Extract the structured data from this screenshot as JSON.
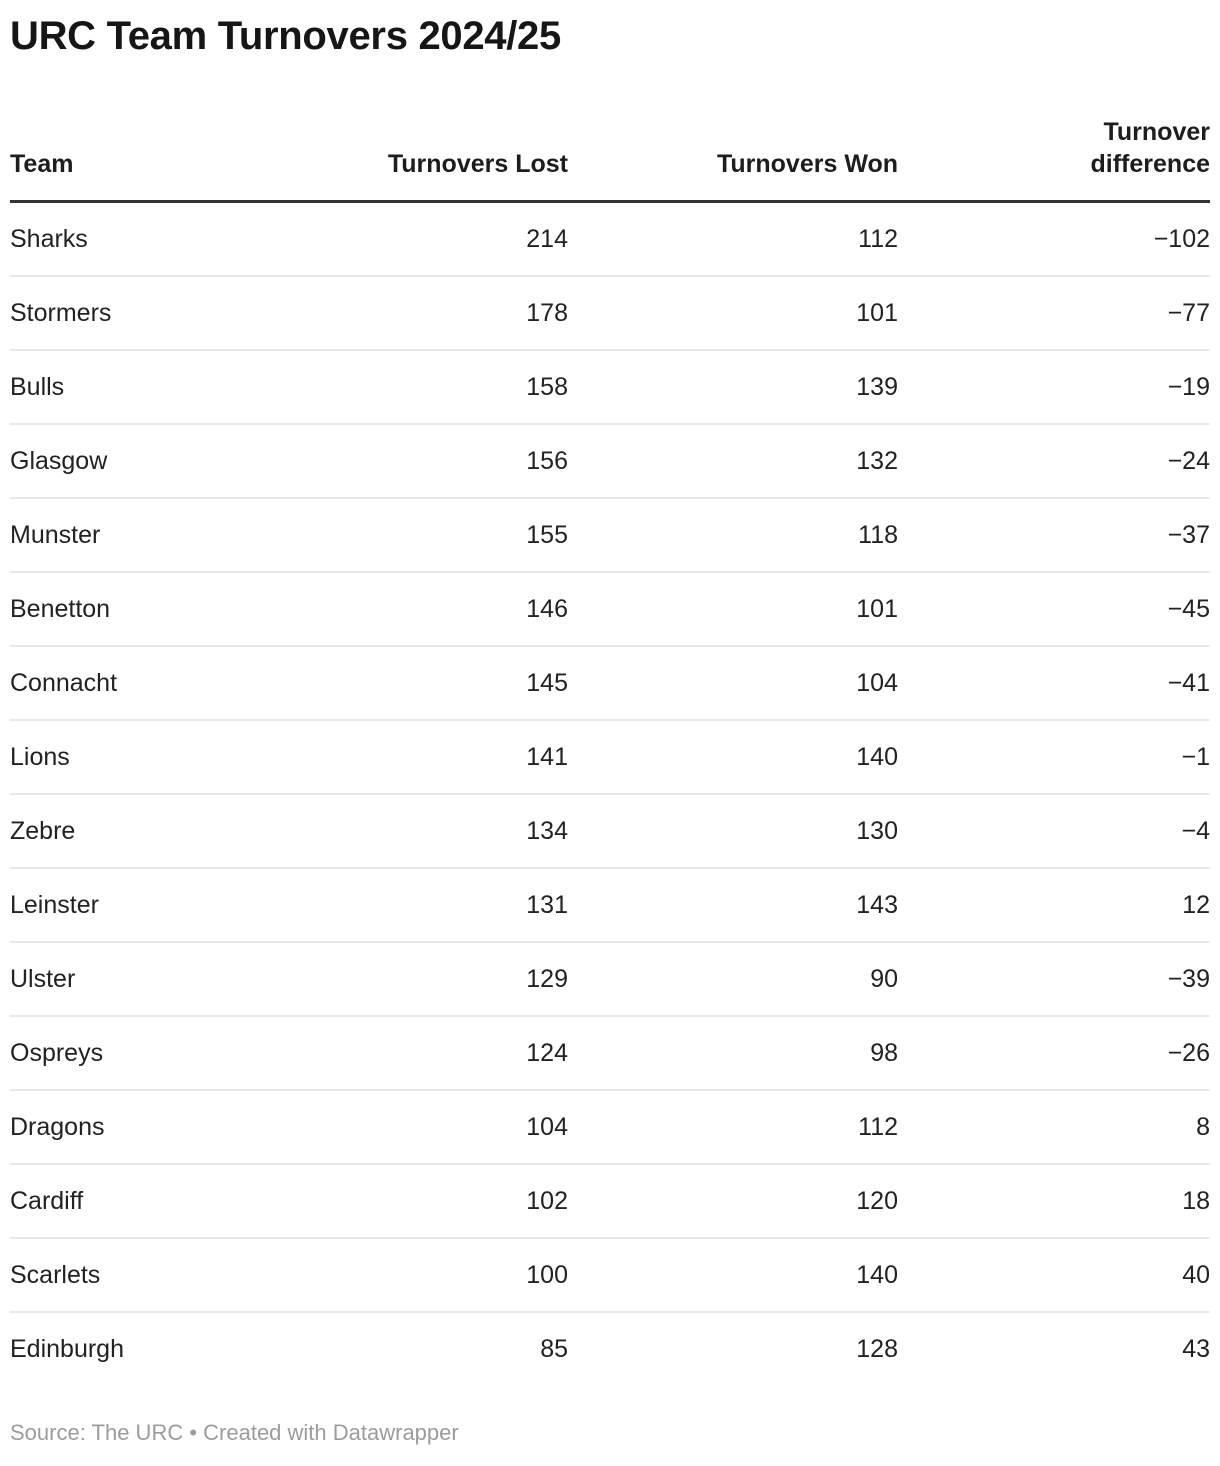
{
  "title": "URC Team Turnovers 2024/25",
  "table": {
    "columns": [
      {
        "key": "team",
        "label": "Team",
        "align": "left"
      },
      {
        "key": "turnovers-lost",
        "label": "Turnovers Lost",
        "align": "right"
      },
      {
        "key": "turnovers-won",
        "label": "Turnovers Won",
        "align": "right"
      },
      {
        "key": "turnover-difference",
        "label": "Turnover\ndifference",
        "align": "right"
      }
    ],
    "rows": [
      [
        "Sharks",
        "214",
        "112",
        "−102"
      ],
      [
        "Stormers",
        "178",
        "101",
        "−77"
      ],
      [
        "Bulls",
        "158",
        "139",
        "−19"
      ],
      [
        "Glasgow",
        "156",
        "132",
        "−24"
      ],
      [
        "Munster",
        "155",
        "118",
        "−37"
      ],
      [
        "Benetton",
        "146",
        "101",
        "−45"
      ],
      [
        "Connacht",
        "145",
        "104",
        "−41"
      ],
      [
        "Lions",
        "141",
        "140",
        "−1"
      ],
      [
        "Zebre",
        "134",
        "130",
        "−4"
      ],
      [
        "Leinster",
        "131",
        "143",
        "12"
      ],
      [
        "Ulster",
        "129",
        "90",
        "−39"
      ],
      [
        "Ospreys",
        "124",
        "98",
        "−26"
      ],
      [
        "Dragons",
        "104",
        "112",
        "8"
      ],
      [
        "Cardiff",
        "102",
        "120",
        "18"
      ],
      [
        "Scarlets",
        "100",
        "140",
        "40"
      ],
      [
        "Edinburgh",
        "85",
        "128",
        "43"
      ]
    ]
  },
  "footer": {
    "text": "Source: The URC • Created with Datawrapper"
  },
  "colors": {
    "title_text": "#161616",
    "header_text": "#1d1d1d",
    "body_text": "#222222",
    "header_rule": "#333333",
    "row_divider": "#e8e8e8",
    "footer_text": "#9c9c9c",
    "background": "#ffffff"
  },
  "chart_data": {
    "type": "table",
    "title": "URC Team Turnovers 2024/25",
    "columns": [
      "Team",
      "Turnovers Lost",
      "Turnovers Won",
      "Turnover difference"
    ],
    "rows": [
      {
        "team": "Sharks",
        "turnovers_lost": 214,
        "turnovers_won": 112,
        "turnover_difference": -102
      },
      {
        "team": "Stormers",
        "turnovers_lost": 178,
        "turnovers_won": 101,
        "turnover_difference": -77
      },
      {
        "team": "Bulls",
        "turnovers_lost": 158,
        "turnovers_won": 139,
        "turnover_difference": -19
      },
      {
        "team": "Glasgow",
        "turnovers_lost": 156,
        "turnovers_won": 132,
        "turnover_difference": -24
      },
      {
        "team": "Munster",
        "turnovers_lost": 155,
        "turnovers_won": 118,
        "turnover_difference": -37
      },
      {
        "team": "Benetton",
        "turnovers_lost": 146,
        "turnovers_won": 101,
        "turnover_difference": -45
      },
      {
        "team": "Connacht",
        "turnovers_lost": 145,
        "turnovers_won": 104,
        "turnover_difference": -41
      },
      {
        "team": "Lions",
        "turnovers_lost": 141,
        "turnovers_won": 140,
        "turnover_difference": -1
      },
      {
        "team": "Zebre",
        "turnovers_lost": 134,
        "turnovers_won": 130,
        "turnover_difference": -4
      },
      {
        "team": "Leinster",
        "turnovers_lost": 131,
        "turnovers_won": 143,
        "turnover_difference": 12
      },
      {
        "team": "Ulster",
        "turnovers_lost": 129,
        "turnovers_won": 90,
        "turnover_difference": -39
      },
      {
        "team": "Ospreys",
        "turnovers_lost": 124,
        "turnovers_won": 98,
        "turnover_difference": -26
      },
      {
        "team": "Dragons",
        "turnovers_lost": 104,
        "turnovers_won": 112,
        "turnover_difference": 8
      },
      {
        "team": "Cardiff",
        "turnovers_lost": 102,
        "turnovers_won": 120,
        "turnover_difference": 18
      },
      {
        "team": "Scarlets",
        "turnovers_lost": 100,
        "turnovers_won": 140,
        "turnover_difference": 40
      },
      {
        "team": "Edinburgh",
        "turnovers_lost": 85,
        "turnovers_won": 128,
        "turnover_difference": 43
      }
    ],
    "source": "The URC",
    "attribution": "Created with Datawrapper",
    "layout_hints": {
      "first_column_align": "left",
      "numeric_columns_align": "right",
      "header_rule": "thick-dark",
      "row_dividers": true,
      "last_column_header_wraps": true
    }
  }
}
